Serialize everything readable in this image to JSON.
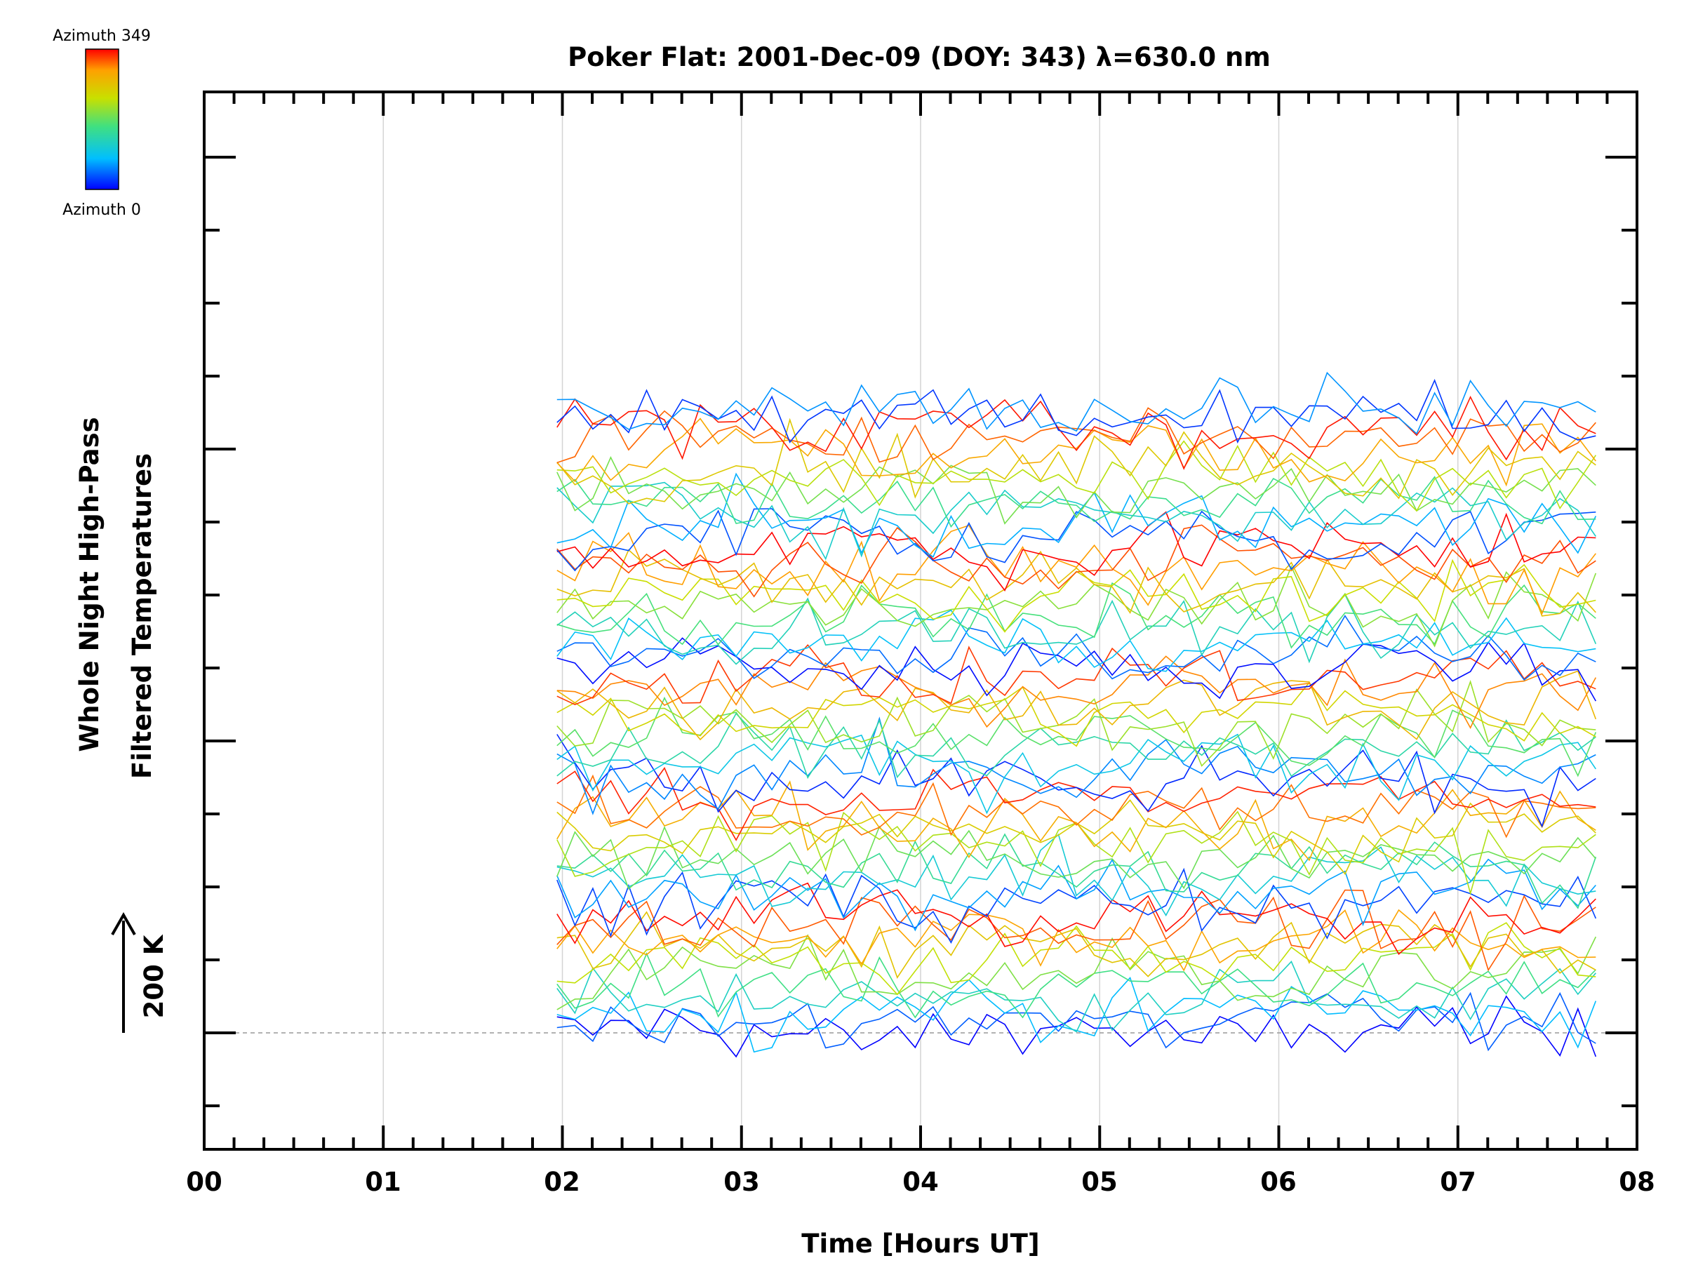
{
  "chart_data": {
    "type": "line",
    "title": "Poker Flat: 2001-Dec-09 (DOY: 343) λ=630.0 nm",
    "xlabel": "Time [Hours UT]",
    "ylabel_line1": "Whole Night High-Pass",
    "ylabel_line2": "Filtered Temperatures",
    "scale_label": "200 K",
    "xlim": [
      0,
      8
    ],
    "x_tick_labels": [
      "00",
      "01",
      "02",
      "03",
      "04",
      "05",
      "06",
      "07",
      "08"
    ],
    "x_grid": true,
    "y_axis_tick_labels": false,
    "colorbar": {
      "top_label": "Azimuth  349",
      "bottom_label": "Azimuth  0",
      "min": 0,
      "max": 349,
      "colors": [
        "#0000ff",
        "#00bfff",
        "#40e080",
        "#c8e000",
        "#ffa000",
        "#ff0000"
      ]
    },
    "trace_spacing_K": 100,
    "series_count": 54,
    "x_start": 1.97,
    "x_end": 7.78,
    "x_step": 0.1,
    "baseline_dashed": true
  }
}
